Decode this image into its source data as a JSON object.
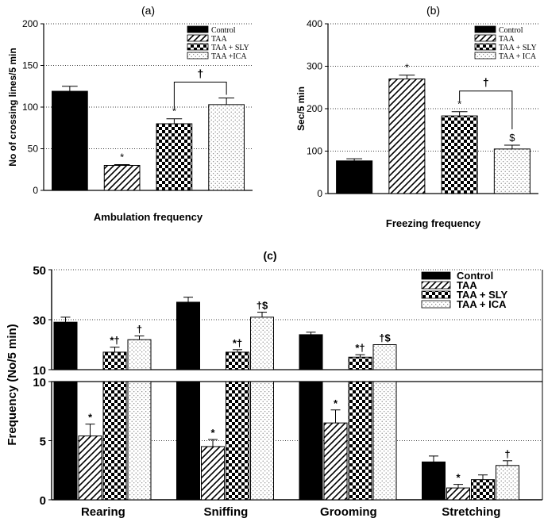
{
  "chart_data": [
    {
      "id": "a",
      "type": "bar",
      "panel_label": "(a)",
      "title": "Ambulation frequency",
      "xlabel": "Ambulation frequency",
      "ylabel": "No of crossing lines/5 min",
      "ylim": [
        0,
        200
      ],
      "yticks": [
        "0",
        "50",
        "100",
        "150",
        "200"
      ],
      "grid": true,
      "legend_position": "top-right",
      "categories": [
        "Control",
        "TAA",
        "TAA + SLY",
        "TAA +ICA"
      ],
      "values": [
        119,
        30,
        80,
        103
      ],
      "errors": [
        6,
        1,
        6,
        8
      ],
      "bar_marks": [
        "",
        "*",
        "*",
        ""
      ],
      "bracket": {
        "from": 2,
        "to": 3,
        "label": "†"
      }
    },
    {
      "id": "b",
      "type": "bar",
      "panel_label": "(b)",
      "title": "Freezing frequency",
      "xlabel": "Freezing frequency",
      "ylabel": "Sec/5 min",
      "ylim": [
        0,
        400
      ],
      "yticks": [
        "0",
        "100",
        "200",
        "300",
        "400"
      ],
      "grid": true,
      "legend_position": "top-right",
      "categories": [
        "Control",
        "TAA",
        "TAA + SLY",
        "TAA + ICA"
      ],
      "values": [
        77,
        270,
        183,
        105
      ],
      "errors": [
        5,
        9,
        10,
        9
      ],
      "bar_marks": [
        "",
        "*",
        "*",
        "$"
      ],
      "bracket": {
        "from": 2,
        "to": 3,
        "label": "†"
      }
    },
    {
      "id": "c",
      "type": "bar",
      "panel_label": "(c)",
      "ylabel": "Frequency (No/5 min)",
      "grid": true,
      "legend_position": "top-right",
      "axis_break": "10",
      "upper_ylim": [
        10,
        50
      ],
      "upper_yticks": [
        "10",
        "30",
        "50"
      ],
      "lower_ylim": [
        0,
        10
      ],
      "lower_yticks": [
        "0",
        "5",
        "10"
      ],
      "legend": [
        "Control",
        "TAA",
        "TAA + SLY",
        "TAA + ICA"
      ],
      "categories": [
        "Rearing",
        "Sniffing",
        "Grooming",
        "Stretching"
      ],
      "series": [
        {
          "name": "Control",
          "values": [
            29,
            37,
            24,
            3.2
          ],
          "errors": [
            2,
            2,
            1,
            0.5
          ],
          "marks": [
            "",
            "",
            "",
            ""
          ]
        },
        {
          "name": "TAA",
          "values": [
            5.4,
            4.5,
            6.5,
            1.0
          ],
          "errors": [
            1.0,
            0.6,
            1.1,
            0.3
          ],
          "marks": [
            "*",
            "*",
            "*",
            "*"
          ]
        },
        {
          "name": "TAA + SLY",
          "values": [
            17,
            17,
            15,
            1.7
          ],
          "errors": [
            2,
            1,
            1,
            0.4
          ],
          "marks": [
            "*†",
            "*†",
            "*†",
            ""
          ]
        },
        {
          "name": "TAA + ICA",
          "values": [
            22,
            31,
            20,
            2.9
          ],
          "errors": [
            1.5,
            2,
            0,
            0.4
          ],
          "marks": [
            "†",
            "†$",
            "†$",
            "†"
          ]
        }
      ]
    }
  ]
}
